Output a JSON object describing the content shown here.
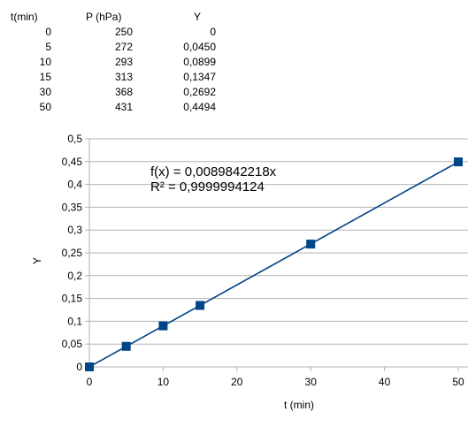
{
  "table": {
    "headers": [
      "t(min)",
      "P (hPa)",
      "Y"
    ],
    "rows": [
      [
        "0",
        "250",
        "0"
      ],
      [
        "5",
        "272",
        "0,0450"
      ],
      [
        "10",
        "293",
        "0,0899"
      ],
      [
        "15",
        "313",
        "0,1347"
      ],
      [
        "30",
        "368",
        "0,2692"
      ],
      [
        "50",
        "431",
        "0,4494"
      ]
    ]
  },
  "chart_data": {
    "type": "scatter",
    "xlabel": "t (min)",
    "ylabel": "Y",
    "xlim": [
      0,
      50
    ],
    "ylim": [
      0,
      0.5
    ],
    "x_ticks": [
      0,
      10,
      20,
      30,
      40,
      50
    ],
    "x_tick_labels": [
      "0",
      "10",
      "20",
      "30",
      "40",
      "50"
    ],
    "y_ticks": [
      0,
      0.05,
      0.1,
      0.15,
      0.2,
      0.25,
      0.3,
      0.35,
      0.4,
      0.45,
      0.5
    ],
    "y_tick_labels": [
      "0",
      "0,05",
      "0,1",
      "0,15",
      "0,2",
      "0,25",
      "0,3",
      "0,35",
      "0,4",
      "0,45",
      "0,5"
    ],
    "grid": true,
    "legend": false,
    "series": [
      {
        "x": [
          0,
          5,
          10,
          15,
          30,
          50
        ],
        "y": [
          0,
          0.045,
          0.0899,
          0.1347,
          0.2692,
          0.4494
        ],
        "marker": "square",
        "color": "#004586"
      }
    ],
    "trendline": {
      "type": "linear",
      "slope": 0.0089842218,
      "intercept": 0,
      "color": "#004586",
      "equation": "f(x) = 0,0089842218x",
      "r_squared": "R² = 0,9999994124"
    }
  }
}
